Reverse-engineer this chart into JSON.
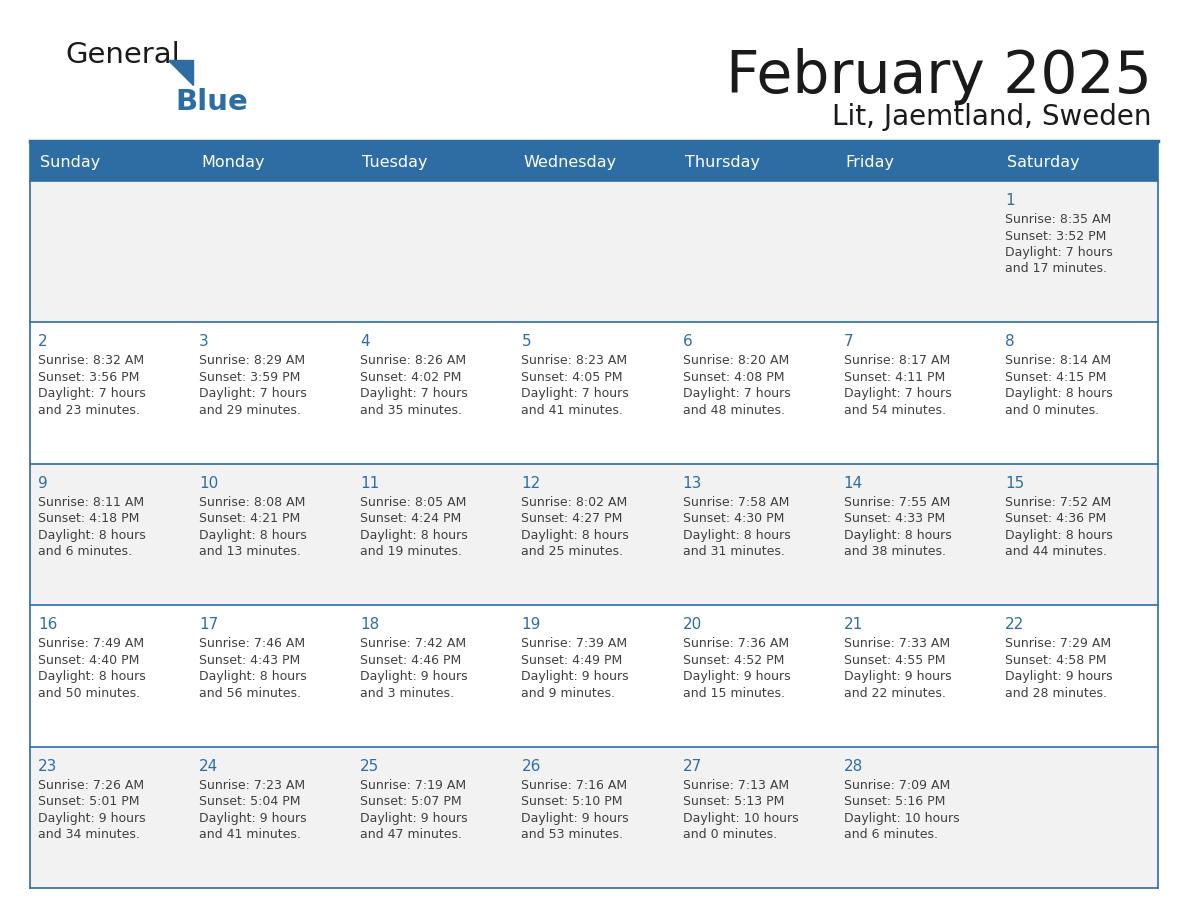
{
  "title": "February 2025",
  "subtitle": "Lit, Jaemtland, Sweden",
  "header_color": "#2E6DA4",
  "header_text_color": "#FFFFFF",
  "day_names": [
    "Sunday",
    "Monday",
    "Tuesday",
    "Wednesday",
    "Thursday",
    "Friday",
    "Saturday"
  ],
  "background_color": "#FFFFFF",
  "cell_bg_row0": "#F2F2F2",
  "cell_bg_row1": "#FFFFFF",
  "cell_bg_row2": "#F2F2F2",
  "cell_bg_row3": "#FFFFFF",
  "cell_bg_row4": "#F2F2F2",
  "border_color": "#2E6DA4",
  "text_color": "#404040",
  "day_number_color": "#2E6DA4",
  "logo_text_color": "#1a1a1a",
  "logo_blue_color": "#2E6DA4",
  "days": [
    {
      "day": 1,
      "col": 6,
      "row": 0,
      "sunrise": "8:35 AM",
      "sunset": "3:52 PM",
      "daylight": "7 hours and 17 minutes."
    },
    {
      "day": 2,
      "col": 0,
      "row": 1,
      "sunrise": "8:32 AM",
      "sunset": "3:56 PM",
      "daylight": "7 hours and 23 minutes."
    },
    {
      "day": 3,
      "col": 1,
      "row": 1,
      "sunrise": "8:29 AM",
      "sunset": "3:59 PM",
      "daylight": "7 hours and 29 minutes."
    },
    {
      "day": 4,
      "col": 2,
      "row": 1,
      "sunrise": "8:26 AM",
      "sunset": "4:02 PM",
      "daylight": "7 hours and 35 minutes."
    },
    {
      "day": 5,
      "col": 3,
      "row": 1,
      "sunrise": "8:23 AM",
      "sunset": "4:05 PM",
      "daylight": "7 hours and 41 minutes."
    },
    {
      "day": 6,
      "col": 4,
      "row": 1,
      "sunrise": "8:20 AM",
      "sunset": "4:08 PM",
      "daylight": "7 hours and 48 minutes."
    },
    {
      "day": 7,
      "col": 5,
      "row": 1,
      "sunrise": "8:17 AM",
      "sunset": "4:11 PM",
      "daylight": "7 hours and 54 minutes."
    },
    {
      "day": 8,
      "col": 6,
      "row": 1,
      "sunrise": "8:14 AM",
      "sunset": "4:15 PM",
      "daylight": "8 hours and 0 minutes."
    },
    {
      "day": 9,
      "col": 0,
      "row": 2,
      "sunrise": "8:11 AM",
      "sunset": "4:18 PM",
      "daylight": "8 hours and 6 minutes."
    },
    {
      "day": 10,
      "col": 1,
      "row": 2,
      "sunrise": "8:08 AM",
      "sunset": "4:21 PM",
      "daylight": "8 hours and 13 minutes."
    },
    {
      "day": 11,
      "col": 2,
      "row": 2,
      "sunrise": "8:05 AM",
      "sunset": "4:24 PM",
      "daylight": "8 hours and 19 minutes."
    },
    {
      "day": 12,
      "col": 3,
      "row": 2,
      "sunrise": "8:02 AM",
      "sunset": "4:27 PM",
      "daylight": "8 hours and 25 minutes."
    },
    {
      "day": 13,
      "col": 4,
      "row": 2,
      "sunrise": "7:58 AM",
      "sunset": "4:30 PM",
      "daylight": "8 hours and 31 minutes."
    },
    {
      "day": 14,
      "col": 5,
      "row": 2,
      "sunrise": "7:55 AM",
      "sunset": "4:33 PM",
      "daylight": "8 hours and 38 minutes."
    },
    {
      "day": 15,
      "col": 6,
      "row": 2,
      "sunrise": "7:52 AM",
      "sunset": "4:36 PM",
      "daylight": "8 hours and 44 minutes."
    },
    {
      "day": 16,
      "col": 0,
      "row": 3,
      "sunrise": "7:49 AM",
      "sunset": "4:40 PM",
      "daylight": "8 hours and 50 minutes."
    },
    {
      "day": 17,
      "col": 1,
      "row": 3,
      "sunrise": "7:46 AM",
      "sunset": "4:43 PM",
      "daylight": "8 hours and 56 minutes."
    },
    {
      "day": 18,
      "col": 2,
      "row": 3,
      "sunrise": "7:42 AM",
      "sunset": "4:46 PM",
      "daylight": "9 hours and 3 minutes."
    },
    {
      "day": 19,
      "col": 3,
      "row": 3,
      "sunrise": "7:39 AM",
      "sunset": "4:49 PM",
      "daylight": "9 hours and 9 minutes."
    },
    {
      "day": 20,
      "col": 4,
      "row": 3,
      "sunrise": "7:36 AM",
      "sunset": "4:52 PM",
      "daylight": "9 hours and 15 minutes."
    },
    {
      "day": 21,
      "col": 5,
      "row": 3,
      "sunrise": "7:33 AM",
      "sunset": "4:55 PM",
      "daylight": "9 hours and 22 minutes."
    },
    {
      "day": 22,
      "col": 6,
      "row": 3,
      "sunrise": "7:29 AM",
      "sunset": "4:58 PM",
      "daylight": "9 hours and 28 minutes."
    },
    {
      "day": 23,
      "col": 0,
      "row": 4,
      "sunrise": "7:26 AM",
      "sunset": "5:01 PM",
      "daylight": "9 hours and 34 minutes."
    },
    {
      "day": 24,
      "col": 1,
      "row": 4,
      "sunrise": "7:23 AM",
      "sunset": "5:04 PM",
      "daylight": "9 hours and 41 minutes."
    },
    {
      "day": 25,
      "col": 2,
      "row": 4,
      "sunrise": "7:19 AM",
      "sunset": "5:07 PM",
      "daylight": "9 hours and 47 minutes."
    },
    {
      "day": 26,
      "col": 3,
      "row": 4,
      "sunrise": "7:16 AM",
      "sunset": "5:10 PM",
      "daylight": "9 hours and 53 minutes."
    },
    {
      "day": 27,
      "col": 4,
      "row": 4,
      "sunrise": "7:13 AM",
      "sunset": "5:13 PM",
      "daylight": "10 hours and 0 minutes."
    },
    {
      "day": 28,
      "col": 5,
      "row": 4,
      "sunrise": "7:09 AM",
      "sunset": "5:16 PM",
      "daylight": "10 hours and 6 minutes."
    }
  ]
}
